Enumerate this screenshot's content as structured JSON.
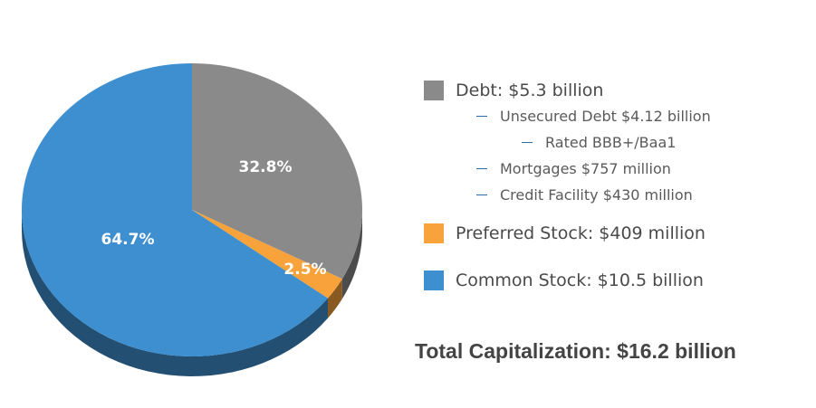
{
  "chart_data": {
    "type": "pie",
    "slices": [
      {
        "label": "Debt",
        "value": 32.8,
        "value_label": "32.8%",
        "color": "#8a8a8a"
      },
      {
        "label": "Preferred Stock",
        "value": 2.5,
        "value_label": "2.5%",
        "color": "#f7a23a"
      },
      {
        "label": "Common Stock",
        "value": 64.7,
        "value_label": "64.7%",
        "color": "#3d8fd0"
      }
    ],
    "legend_placement": "right"
  },
  "legend": {
    "debt": "Debt: $5.3 billion",
    "unsecured": "Unsecured Debt $4.12 billion",
    "rated": "Rated BBB+/Baa1",
    "mortgages": "Mortgages $757 million",
    "credit": "Credit Facility $430 million",
    "preferred": "Preferred Stock: $409 million",
    "common": "Common Stock: $10.5 billion"
  },
  "total": "Total Capitalization: $16.2 billion",
  "colors": {
    "debt": "#8a8a8a",
    "preferred": "#f7a23a",
    "common": "#3d8fd0",
    "bullet_dash": "#2e6ca8"
  }
}
